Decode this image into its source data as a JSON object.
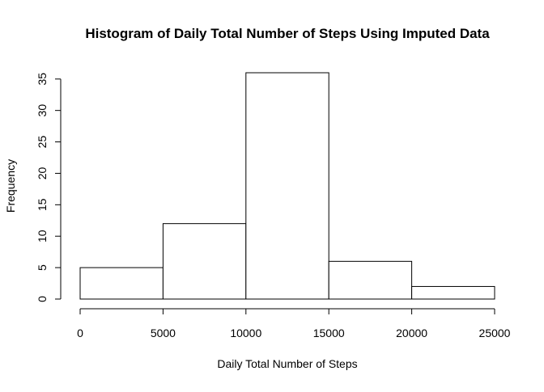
{
  "chart_data": {
    "type": "bar",
    "title": "Histogram of Daily Total Number of Steps Using Imputed Data",
    "xlabel": "Daily Total Number of Steps",
    "ylabel": "Frequency",
    "bins": [
      {
        "from": 0,
        "to": 5000,
        "count": 5
      },
      {
        "from": 5000,
        "to": 10000,
        "count": 12
      },
      {
        "from": 10000,
        "to": 15000,
        "count": 36
      },
      {
        "from": 15000,
        "to": 20000,
        "count": 6
      },
      {
        "from": 20000,
        "to": 25000,
        "count": 2
      }
    ],
    "x_ticks": [
      "0",
      "5000",
      "10000",
      "15000",
      "20000",
      "25000"
    ],
    "y_ticks": [
      "0",
      "5",
      "10",
      "15",
      "20",
      "25",
      "30",
      "35"
    ],
    "xlim": [
      0,
      25000
    ],
    "ylim": [
      0,
      36
    ],
    "grid": false,
    "bar_fill": "#ffffff",
    "bar_stroke": "#000000"
  }
}
